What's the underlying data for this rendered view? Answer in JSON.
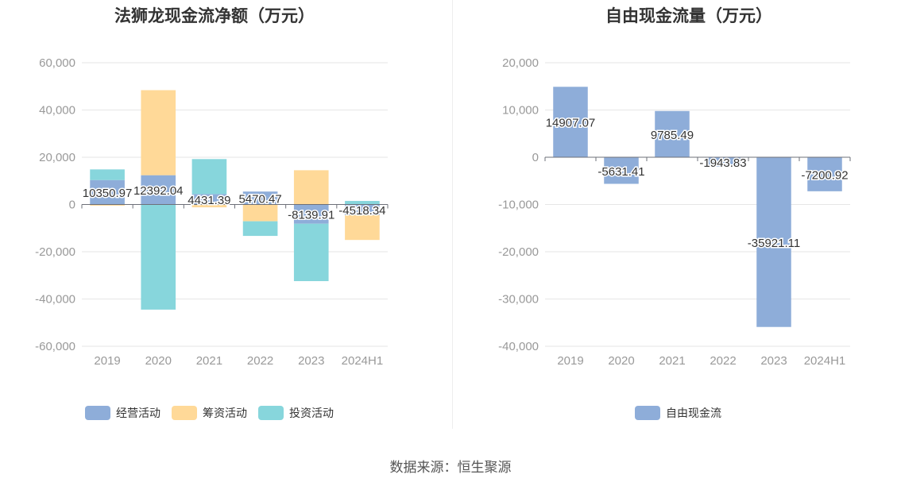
{
  "colors": {
    "operating": "#8eadd9",
    "financing": "#ffd998",
    "investing": "#87d6dc",
    "freecashflow": "#8eadd9",
    "axis_text": "#999999",
    "grid": "#e6e6e6",
    "label_text": "#333333"
  },
  "source_text": "数据来源：恒生聚源",
  "chart_data": [
    {
      "type": "bar",
      "stacked": true,
      "title": "法狮龙现金流净额（万元）",
      "categories": [
        "2019",
        "2020",
        "2021",
        "2022",
        "2023",
        "2024H1"
      ],
      "ylim": [
        -60000,
        60000
      ],
      "yticks": [
        60000,
        40000,
        20000,
        0,
        -20000,
        -40000,
        -60000
      ],
      "ytick_labels": [
        "60,000",
        "40,000",
        "20,000",
        "0",
        "-20,000",
        "-40,000",
        "-60,000"
      ],
      "grid": true,
      "legend_position": "bottom",
      "series": [
        {
          "name": "经营活动",
          "color_key": "operating",
          "values": [
            10350.97,
            12392.04,
            4431.39,
            5470.47,
            -8139.91,
            -4518.34
          ]
        },
        {
          "name": "筹资活动",
          "color_key": "financing",
          "values": [
            -500,
            36000,
            -1200,
            -7100,
            14500,
            -10500
          ]
        },
        {
          "name": "投资活动",
          "color_key": "investing",
          "values": [
            4500,
            -44500,
            14800,
            -6200,
            -24300,
            1500
          ]
        }
      ],
      "data_labels": [
        "10350.97",
        "12392.04",
        "4431.39",
        "5470.47",
        "-8139.91",
        "-4518.34"
      ]
    },
    {
      "type": "bar",
      "title": "自由现金流量（万元）",
      "categories": [
        "2019",
        "2020",
        "2021",
        "2022",
        "2023",
        "2024H1"
      ],
      "ylim": [
        -40000,
        20000
      ],
      "yticks": [
        20000,
        10000,
        0,
        -10000,
        -20000,
        -30000,
        -40000
      ],
      "ytick_labels": [
        "20,000",
        "10,000",
        "0",
        "-10,000",
        "-20,000",
        "-30,000",
        "-40,000"
      ],
      "grid": true,
      "legend_position": "bottom",
      "series": [
        {
          "name": "自由现金流",
          "color_key": "freecashflow",
          "values": [
            14907.07,
            -5631.41,
            9785.49,
            -1943.83,
            -35921.11,
            -7200.92
          ]
        }
      ],
      "data_labels": [
        "14907.07",
        "-5631.41",
        "9785.49",
        "-1943.83",
        "-35921.11",
        "-7200.92"
      ]
    }
  ]
}
